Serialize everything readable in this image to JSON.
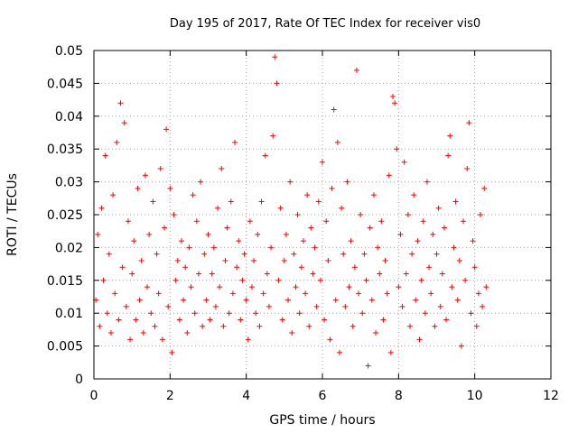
{
  "chart_data": {
    "type": "scatter",
    "title": "Day 195 of 2017, Rate Of TEC Index for receiver vis0",
    "xlabel": "GPS time / hours",
    "ylabel": "ROTI / TECUs",
    "xlim": [
      0,
      12
    ],
    "ylim": [
      0,
      0.05
    ],
    "x_ticks": [
      "0",
      "2",
      "4",
      "6",
      "8",
      "10",
      "12"
    ],
    "y_ticks": [
      "0",
      "0.005",
      "0.01",
      "0.015",
      "0.02",
      "0.025",
      "0.03",
      "0.035",
      "0.04",
      "0.045",
      "0.05"
    ],
    "grid": true,
    "marker": "plus",
    "color": "#ff0000",
    "series": [
      {
        "values": [
          [
            0.05,
            0.012
          ],
          [
            0.1,
            0.022
          ],
          [
            0.15,
            0.008
          ],
          [
            0.2,
            0.026
          ],
          [
            0.25,
            0.015
          ],
          [
            0.3,
            0.034
          ],
          [
            0.35,
            0.01
          ],
          [
            0.4,
            0.019
          ],
          [
            0.45,
            0.007
          ],
          [
            0.5,
            0.028
          ],
          [
            0.55,
            0.013
          ],
          [
            0.6,
            0.036
          ],
          [
            0.65,
            0.009
          ],
          [
            0.7,
            0.042
          ],
          [
            0.75,
            0.017
          ],
          [
            0.8,
            0.039
          ],
          [
            0.85,
            0.011
          ],
          [
            0.9,
            0.024
          ],
          [
            0.95,
            0.006
          ],
          [
            1.0,
            0.016
          ],
          [
            1.05,
            0.021
          ],
          [
            1.1,
            0.009
          ],
          [
            1.15,
            0.029
          ],
          [
            1.2,
            0.012
          ],
          [
            1.25,
            0.018
          ],
          [
            1.3,
            0.007
          ],
          [
            1.35,
            0.031
          ],
          [
            1.4,
            0.014
          ],
          [
            1.45,
            0.022
          ],
          [
            1.5,
            0.01
          ],
          [
            1.55,
            0.027
          ],
          [
            1.6,
            0.008
          ],
          [
            1.65,
            0.019
          ],
          [
            1.7,
            0.013
          ],
          [
            1.75,
            0.032
          ],
          [
            1.8,
            0.006
          ],
          [
            1.85,
            0.023
          ],
          [
            1.9,
            0.038
          ],
          [
            1.95,
            0.011
          ],
          [
            2.0,
            0.029
          ],
          [
            2.05,
            0.004
          ],
          [
            2.1,
            0.025
          ],
          [
            2.15,
            0.015
          ],
          [
            2.2,
            0.018
          ],
          [
            2.25,
            0.009
          ],
          [
            2.3,
            0.021
          ],
          [
            2.35,
            0.012
          ],
          [
            2.4,
            0.017
          ],
          [
            2.45,
            0.007
          ],
          [
            2.5,
            0.02
          ],
          [
            2.55,
            0.014
          ],
          [
            2.6,
            0.028
          ],
          [
            2.65,
            0.01
          ],
          [
            2.7,
            0.024
          ],
          [
            2.75,
            0.016
          ],
          [
            2.8,
            0.03
          ],
          [
            2.85,
            0.008
          ],
          [
            2.9,
            0.019
          ],
          [
            2.95,
            0.012
          ],
          [
            3.0,
            0.022
          ],
          [
            3.05,
            0.009
          ],
          [
            3.1,
            0.016
          ],
          [
            3.15,
            0.02
          ],
          [
            3.2,
            0.011
          ],
          [
            3.25,
            0.026
          ],
          [
            3.3,
            0.014
          ],
          [
            3.35,
            0.032
          ],
          [
            3.4,
            0.008
          ],
          [
            3.45,
            0.018
          ],
          [
            3.5,
            0.023
          ],
          [
            3.55,
            0.01
          ],
          [
            3.6,
            0.027
          ],
          [
            3.65,
            0.013
          ],
          [
            3.7,
            0.036
          ],
          [
            3.75,
            0.017
          ],
          [
            3.8,
            0.021
          ],
          [
            3.85,
            0.009
          ],
          [
            3.9,
            0.015
          ],
          [
            3.95,
            0.019
          ],
          [
            4.0,
            0.012
          ],
          [
            4.05,
            0.006
          ],
          [
            4.1,
            0.024
          ],
          [
            4.15,
            0.014
          ],
          [
            4.2,
            0.018
          ],
          [
            4.25,
            0.01
          ],
          [
            4.3,
            0.022
          ],
          [
            4.35,
            0.008
          ],
          [
            4.4,
            0.027
          ],
          [
            4.45,
            0.013
          ],
          [
            4.5,
            0.034
          ],
          [
            4.55,
            0.016
          ],
          [
            4.6,
            0.011
          ],
          [
            4.65,
            0.02
          ],
          [
            4.7,
            0.037
          ],
          [
            4.75,
            0.049
          ],
          [
            4.8,
            0.045
          ],
          [
            4.85,
            0.015
          ],
          [
            4.9,
            0.026
          ],
          [
            4.95,
            0.009
          ],
          [
            5.0,
            0.018
          ],
          [
            5.05,
            0.022
          ],
          [
            5.1,
            0.012
          ],
          [
            5.15,
            0.03
          ],
          [
            5.2,
            0.007
          ],
          [
            5.25,
            0.019
          ],
          [
            5.3,
            0.014
          ],
          [
            5.35,
            0.025
          ],
          [
            5.4,
            0.01
          ],
          [
            5.45,
            0.017
          ],
          [
            5.5,
            0.021
          ],
          [
            5.55,
            0.013
          ],
          [
            5.6,
            0.028
          ],
          [
            5.65,
            0.008
          ],
          [
            5.7,
            0.023
          ],
          [
            5.75,
            0.016
          ],
          [
            5.8,
            0.02
          ],
          [
            5.85,
            0.011
          ],
          [
            5.9,
            0.027
          ],
          [
            5.95,
            0.015
          ],
          [
            6.0,
            0.033
          ],
          [
            6.05,
            0.009
          ],
          [
            6.1,
            0.024
          ],
          [
            6.15,
            0.018
          ],
          [
            6.2,
            0.006
          ],
          [
            6.25,
            0.029
          ],
          [
            6.3,
            0.041
          ],
          [
            6.35,
            0.012
          ],
          [
            6.4,
            0.036
          ],
          [
            6.45,
            0.004
          ],
          [
            6.5,
            0.026
          ],
          [
            6.55,
            0.019
          ],
          [
            6.6,
            0.011
          ],
          [
            6.65,
            0.03
          ],
          [
            6.7,
            0.014
          ],
          [
            6.75,
            0.021
          ],
          [
            6.8,
            0.008
          ],
          [
            6.85,
            0.017
          ],
          [
            6.9,
            0.047
          ],
          [
            6.95,
            0.013
          ],
          [
            7.0,
            0.025
          ],
          [
            7.05,
            0.01
          ],
          [
            7.1,
            0.019
          ],
          [
            7.15,
            0.015
          ],
          [
            7.2,
            0.002
          ],
          [
            7.25,
            0.023
          ],
          [
            7.3,
            0.012
          ],
          [
            7.35,
            0.028
          ],
          [
            7.4,
            0.007
          ],
          [
            7.45,
            0.02
          ],
          [
            7.5,
            0.016
          ],
          [
            7.55,
            0.024
          ],
          [
            7.6,
            0.009
          ],
          [
            7.65,
            0.018
          ],
          [
            7.7,
            0.013
          ],
          [
            7.75,
            0.031
          ],
          [
            7.8,
            0.004
          ],
          [
            7.85,
            0.043
          ],
          [
            7.9,
            0.042
          ],
          [
            7.95,
            0.035
          ],
          [
            8.0,
            0.014
          ],
          [
            8.05,
            0.022
          ],
          [
            8.1,
            0.011
          ],
          [
            8.15,
            0.033
          ],
          [
            8.2,
            0.016
          ],
          [
            8.25,
            0.025
          ],
          [
            8.3,
            0.008
          ],
          [
            8.35,
            0.019
          ],
          [
            8.4,
            0.028
          ],
          [
            8.45,
            0.012
          ],
          [
            8.5,
            0.021
          ],
          [
            8.55,
            0.006
          ],
          [
            8.6,
            0.015
          ],
          [
            8.65,
            0.024
          ],
          [
            8.7,
            0.01
          ],
          [
            8.75,
            0.03
          ],
          [
            8.8,
            0.017
          ],
          [
            8.85,
            0.013
          ],
          [
            8.9,
            0.022
          ],
          [
            8.95,
            0.008
          ],
          [
            9.0,
            0.019
          ],
          [
            9.05,
            0.026
          ],
          [
            9.1,
            0.011
          ],
          [
            9.15,
            0.016
          ],
          [
            9.2,
            0.023
          ],
          [
            9.25,
            0.009
          ],
          [
            9.3,
            0.034
          ],
          [
            9.35,
            0.037
          ],
          [
            9.4,
            0.014
          ],
          [
            9.45,
            0.02
          ],
          [
            9.5,
            0.027
          ],
          [
            9.55,
            0.012
          ],
          [
            9.6,
            0.018
          ],
          [
            9.65,
            0.005
          ],
          [
            9.7,
            0.024
          ],
          [
            9.75,
            0.015
          ],
          [
            9.8,
            0.032
          ],
          [
            9.85,
            0.039
          ],
          [
            9.9,
            0.01
          ],
          [
            9.95,
            0.021
          ],
          [
            10.0,
            0.017
          ],
          [
            10.05,
            0.008
          ],
          [
            10.1,
            0.013
          ],
          [
            10.15,
            0.025
          ],
          [
            10.2,
            0.011
          ],
          [
            10.25,
            0.029
          ],
          [
            10.3,
            0.014
          ]
        ]
      }
    ]
  }
}
